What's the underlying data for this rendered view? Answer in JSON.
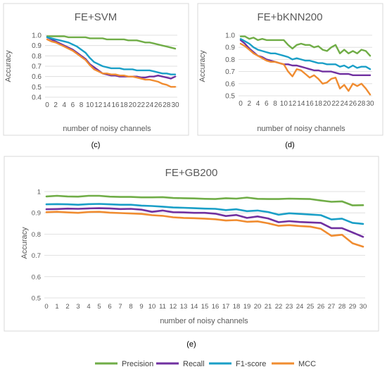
{
  "subfigure_labels": [
    "(c)",
    "(d)",
    "(e)"
  ],
  "legend": [
    {
      "name": "Precision",
      "color": "#70ad47"
    },
    {
      "name": "Recall",
      "color": "#7030a0"
    },
    {
      "name": "F1-score",
      "color": "#1a9fc7"
    },
    {
      "name": "MCC",
      "color": "#f08c30"
    }
  ],
  "chart_data": [
    {
      "type": "line",
      "title": "FE+SVM",
      "xlabel": "number of noisy channels",
      "ylabel": "Accuracy",
      "ylim": [
        0.4,
        1.0
      ],
      "yticks": [
        0.4,
        0.5,
        0.6,
        0.7,
        0.8,
        0.9,
        1.0
      ],
      "ytick_labels": [
        "0.4",
        "0.5",
        "0.6",
        "0.7",
        "0.8",
        "0.9",
        "1.0"
      ],
      "x": [
        0,
        1,
        2,
        3,
        4,
        5,
        6,
        7,
        8,
        9,
        10,
        11,
        12,
        13,
        14,
        15,
        16,
        17,
        18,
        19,
        20,
        21,
        22,
        23,
        24,
        25,
        26,
        27,
        28,
        29,
        30
      ],
      "xtick_values": [
        0,
        2,
        4,
        6,
        8,
        10,
        12,
        14,
        16,
        18,
        20,
        22,
        24,
        26,
        28,
        30
      ],
      "xtick_labels": [
        "0",
        "2",
        "4",
        "6",
        "8",
        "10",
        "12",
        "14",
        "16",
        "18",
        "20",
        "22",
        "24",
        "26",
        "28",
        "30"
      ],
      "grid": true,
      "series": [
        {
          "name": "Precision",
          "color": "#70ad47",
          "values": [
            0.99,
            0.99,
            0.99,
            0.99,
            0.99,
            0.98,
            0.98,
            0.98,
            0.98,
            0.98,
            0.97,
            0.97,
            0.97,
            0.97,
            0.96,
            0.96,
            0.96,
            0.96,
            0.96,
            0.95,
            0.95,
            0.95,
            0.94,
            0.93,
            0.93,
            0.92,
            0.91,
            0.9,
            0.89,
            0.88,
            0.87
          ]
        },
        {
          "name": "Recall",
          "color": "#7030a0",
          "values": [
            0.98,
            0.96,
            0.94,
            0.92,
            0.9,
            0.88,
            0.86,
            0.83,
            0.8,
            0.77,
            0.72,
            0.69,
            0.66,
            0.63,
            0.62,
            0.61,
            0.61,
            0.6,
            0.6,
            0.6,
            0.6,
            0.6,
            0.59,
            0.59,
            0.6,
            0.6,
            0.61,
            0.6,
            0.59,
            0.58,
            0.6
          ]
        },
        {
          "name": "F1-score",
          "color": "#1a9fc7",
          "values": [
            0.98,
            0.97,
            0.96,
            0.95,
            0.94,
            0.93,
            0.91,
            0.89,
            0.86,
            0.83,
            0.78,
            0.74,
            0.72,
            0.7,
            0.69,
            0.68,
            0.68,
            0.68,
            0.67,
            0.67,
            0.67,
            0.66,
            0.66,
            0.66,
            0.66,
            0.65,
            0.64,
            0.63,
            0.63,
            0.62,
            0.62
          ]
        },
        {
          "name": "MCC",
          "color": "#f08c30",
          "values": [
            0.96,
            0.94,
            0.93,
            0.91,
            0.89,
            0.87,
            0.85,
            0.82,
            0.79,
            0.76,
            0.71,
            0.67,
            0.65,
            0.63,
            0.63,
            0.62,
            0.62,
            0.61,
            0.61,
            0.6,
            0.6,
            0.59,
            0.58,
            0.57,
            0.57,
            0.56,
            0.55,
            0.53,
            0.52,
            0.5,
            0.5
          ]
        }
      ]
    },
    {
      "type": "line",
      "title": "FE+bKNN200",
      "xlabel": "number of noisy channels",
      "ylabel": "Accuracy",
      "ylim": [
        0.5,
        1.0
      ],
      "yticks": [
        0.5,
        0.6,
        0.7,
        0.8,
        0.9,
        1.0
      ],
      "ytick_labels": [
        "0.5",
        "0.6",
        "0.7",
        "0.8",
        "0.9",
        "1.0"
      ],
      "x": [
        0,
        1,
        2,
        3,
        4,
        5,
        6,
        7,
        8,
        9,
        10,
        11,
        12,
        13,
        14,
        15,
        16,
        17,
        18,
        19,
        20,
        21,
        22,
        23,
        24,
        25,
        26,
        27,
        28,
        29,
        30
      ],
      "xtick_values": [
        0,
        2,
        4,
        6,
        8,
        10,
        12,
        14,
        16,
        18,
        20,
        22,
        24,
        26,
        28,
        30
      ],
      "xtick_labels": [
        "0",
        "2",
        "4",
        "6",
        "8",
        "10",
        "12",
        "14",
        "16",
        "18",
        "20",
        "22",
        "24",
        "26",
        "28",
        "30"
      ],
      "grid": true,
      "series": [
        {
          "name": "Precision",
          "color": "#70ad47",
          "values": [
            0.99,
            0.99,
            0.97,
            0.98,
            0.96,
            0.97,
            0.96,
            0.96,
            0.96,
            0.96,
            0.96,
            0.92,
            0.89,
            0.92,
            0.93,
            0.92,
            0.92,
            0.9,
            0.91,
            0.88,
            0.87,
            0.9,
            0.92,
            0.85,
            0.88,
            0.85,
            0.87,
            0.85,
            0.88,
            0.87,
            0.83
          ]
        },
        {
          "name": "Recall",
          "color": "#7030a0",
          "values": [
            0.96,
            0.93,
            0.89,
            0.86,
            0.83,
            0.82,
            0.8,
            0.79,
            0.78,
            0.77,
            0.76,
            0.76,
            0.75,
            0.75,
            0.74,
            0.73,
            0.72,
            0.71,
            0.71,
            0.7,
            0.7,
            0.7,
            0.69,
            0.68,
            0.68,
            0.68,
            0.67,
            0.67,
            0.67,
            0.67,
            0.67
          ]
        },
        {
          "name": "F1-score",
          "color": "#1a9fc7",
          "values": [
            0.97,
            0.95,
            0.93,
            0.9,
            0.88,
            0.87,
            0.86,
            0.85,
            0.85,
            0.84,
            0.83,
            0.82,
            0.8,
            0.81,
            0.8,
            0.79,
            0.79,
            0.78,
            0.77,
            0.77,
            0.76,
            0.76,
            0.76,
            0.74,
            0.75,
            0.73,
            0.75,
            0.73,
            0.74,
            0.74,
            0.72
          ]
        },
        {
          "name": "MCC",
          "color": "#f08c30",
          "values": [
            0.93,
            0.91,
            0.88,
            0.85,
            0.83,
            0.81,
            0.79,
            0.78,
            0.78,
            0.77,
            0.76,
            0.7,
            0.66,
            0.72,
            0.71,
            0.68,
            0.65,
            0.67,
            0.64,
            0.6,
            0.61,
            0.64,
            0.65,
            0.56,
            0.59,
            0.54,
            0.6,
            0.58,
            0.6,
            0.56,
            0.51
          ]
        }
      ]
    },
    {
      "type": "line",
      "title": "FE+GB200",
      "xlabel": "number of noisy channels",
      "ylabel": "Accuracy",
      "ylim": [
        0.5,
        1.0
      ],
      "yticks": [
        0.5,
        0.6,
        0.7,
        0.8,
        0.9,
        1.0
      ],
      "ytick_labels": [
        "0.5",
        "0.6",
        "0.7",
        "0.8",
        "0.9",
        "1"
      ],
      "x": [
        0,
        1,
        2,
        3,
        4,
        5,
        6,
        7,
        8,
        9,
        10,
        11,
        12,
        13,
        14,
        15,
        16,
        17,
        18,
        19,
        20,
        21,
        22,
        23,
        24,
        25,
        26,
        27,
        28,
        29,
        30
      ],
      "xtick_values": [
        0,
        1,
        2,
        3,
        4,
        5,
        6,
        7,
        8,
        9,
        10,
        11,
        12,
        13,
        14,
        15,
        16,
        17,
        18,
        19,
        20,
        21,
        22,
        23,
        24,
        25,
        26,
        27,
        28,
        29,
        30
      ],
      "xtick_labels": [
        "0",
        "1",
        "2",
        "3",
        "4",
        "5",
        "6",
        "7",
        "8",
        "9",
        "10",
        "11",
        "12",
        "13",
        "14",
        "15",
        "16",
        "17",
        "18",
        "19",
        "20",
        "21",
        "22",
        "23",
        "24",
        "25",
        "26",
        "27",
        "28",
        "29",
        "30"
      ],
      "grid": true,
      "series": [
        {
          "name": "Precision",
          "color": "#70ad47",
          "values": [
            0.977,
            0.98,
            0.977,
            0.976,
            0.98,
            0.98,
            0.976,
            0.975,
            0.975,
            0.973,
            0.973,
            0.974,
            0.97,
            0.969,
            0.968,
            0.966,
            0.965,
            0.969,
            0.967,
            0.972,
            0.966,
            0.965,
            0.965,
            0.967,
            0.966,
            0.965,
            0.958,
            0.952,
            0.954,
            0.935,
            0.936
          ]
        },
        {
          "name": "Recall",
          "color": "#7030a0",
          "values": [
            0.917,
            0.918,
            0.92,
            0.919,
            0.921,
            0.922,
            0.921,
            0.918,
            0.919,
            0.915,
            0.905,
            0.911,
            0.903,
            0.902,
            0.9,
            0.9,
            0.896,
            0.885,
            0.89,
            0.876,
            0.883,
            0.874,
            0.856,
            0.861,
            0.857,
            0.855,
            0.853,
            0.828,
            0.828,
            0.808,
            0.787
          ]
        },
        {
          "name": "F1-score",
          "color": "#1a9fc7",
          "values": [
            0.94,
            0.941,
            0.94,
            0.938,
            0.941,
            0.942,
            0.94,
            0.938,
            0.938,
            0.934,
            0.932,
            0.929,
            0.925,
            0.924,
            0.922,
            0.92,
            0.919,
            0.913,
            0.917,
            0.908,
            0.911,
            0.904,
            0.891,
            0.898,
            0.895,
            0.892,
            0.889,
            0.869,
            0.873,
            0.853,
            0.848
          ]
        },
        {
          "name": "MCC",
          "color": "#f08c30",
          "values": [
            0.903,
            0.905,
            0.902,
            0.9,
            0.904,
            0.905,
            0.901,
            0.899,
            0.897,
            0.895,
            0.889,
            0.886,
            0.879,
            0.876,
            0.875,
            0.873,
            0.87,
            0.864,
            0.866,
            0.858,
            0.86,
            0.851,
            0.839,
            0.842,
            0.838,
            0.835,
            0.825,
            0.792,
            0.797,
            0.757,
            0.741
          ]
        }
      ]
    }
  ]
}
